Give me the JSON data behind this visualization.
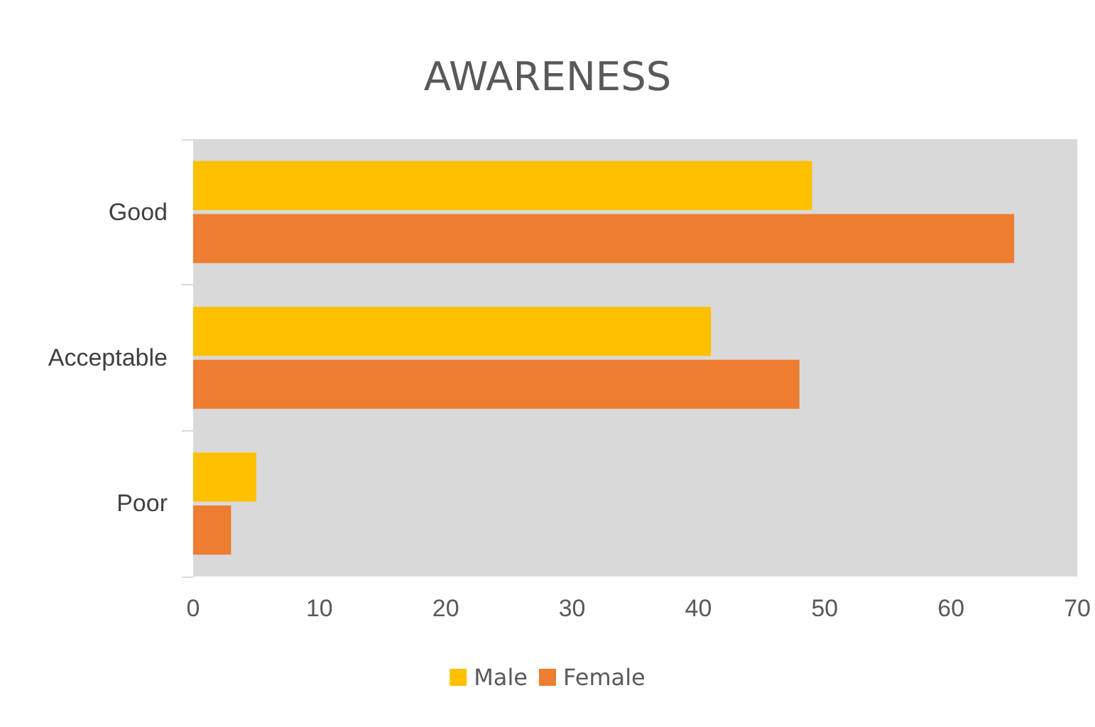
{
  "chart_data": {
    "type": "bar",
    "orientation": "horizontal",
    "title": "AWARENESS",
    "categories": [
      "Good",
      "Acceptable",
      "Poor"
    ],
    "series": [
      {
        "name": "Male",
        "color": "#ffc000",
        "values": [
          49,
          41,
          5
        ]
      },
      {
        "name": "Female",
        "color": "#ed7d31",
        "values": [
          65,
          48,
          3
        ]
      }
    ],
    "xlim": [
      0,
      70
    ],
    "xticks": [
      0,
      10,
      20,
      30,
      40,
      50,
      60,
      70
    ],
    "grid": false,
    "legend": "bottom"
  }
}
